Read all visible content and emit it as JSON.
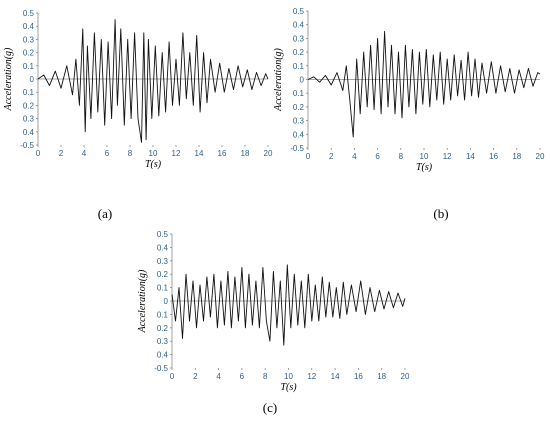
{
  "figure": {
    "captions": [
      "(a)",
      "(b)",
      "(c)"
    ]
  },
  "chart_data": [
    {
      "type": "line",
      "panel": "a",
      "xlabel": "T(s)",
      "ylabel": "Acceleration(g)",
      "xlim": [
        0,
        20
      ],
      "ylim": [
        -0.5,
        0.5
      ],
      "xticks": [
        "0",
        "2",
        "4",
        "6",
        "8",
        "10",
        "12",
        "14",
        "16",
        "18",
        "20"
      ],
      "yticks": [
        "0.5",
        "0.4",
        "0.3",
        "0.2",
        "0.1",
        "0",
        "0.1",
        "0.2",
        "0.3",
        "0.4",
        "-0.5"
      ],
      "grid": false,
      "series": [
        {
          "x": [
            0,
            0.5,
            1,
            1.5,
            2,
            2.5,
            3,
            3.3,
            3.6,
            3.9,
            4.1,
            4.3,
            4.6,
            4.9,
            5.2,
            5.5,
            5.8,
            6.1,
            6.4,
            6.7,
            6.9,
            7.2,
            7.5,
            7.8,
            8.1,
            8.4,
            8.7,
            9,
            9.2,
            9.4,
            9.6,
            9.9,
            10.2,
            10.5,
            10.8,
            11.1,
            11.4,
            11.7,
            12,
            12.3,
            12.6,
            12.9,
            13.2,
            13.5,
            13.8,
            14.1,
            14.4,
            14.7,
            15,
            15.4,
            15.8,
            16.2,
            16.6,
            17,
            17.4,
            17.8,
            18.2,
            18.6,
            19,
            19.4,
            19.8,
            20
          ],
          "y": [
            0,
            0.03,
            -0.05,
            0.06,
            -0.07,
            0.1,
            -0.12,
            0.15,
            -0.2,
            0.38,
            -0.4,
            0.25,
            -0.3,
            0.35,
            -0.25,
            0.3,
            -0.35,
            0.28,
            -0.3,
            0.45,
            -0.2,
            0.38,
            -0.35,
            0.3,
            -0.3,
            0.35,
            -0.3,
            -0.48,
            0.35,
            -0.46,
            0.3,
            -0.3,
            0.25,
            -0.28,
            0.2,
            -0.25,
            0.28,
            -0.2,
            0.15,
            -0.2,
            0.35,
            -0.15,
            0.2,
            -0.2,
            0.33,
            -0.25,
            0.2,
            -0.18,
            0.15,
            -0.1,
            0.12,
            -0.1,
            0.08,
            -0.08,
            0.1,
            -0.06,
            0.07,
            -0.08,
            0.05,
            -0.05,
            0.04,
            0
          ]
        }
      ]
    },
    {
      "type": "line",
      "panel": "b",
      "xlabel": "T(s)",
      "ylabel": "Acceleration(g)",
      "xlim": [
        0,
        20
      ],
      "ylim": [
        -0.5,
        0.5
      ],
      "xticks": [
        "0",
        "2",
        "4",
        "6",
        "8",
        "10",
        "12",
        "14",
        "16",
        "18",
        "20"
      ],
      "yticks": [
        "0.5",
        "0.4",
        "0.3",
        "0.2",
        "0.1",
        "0",
        "0.1",
        "0.2",
        "0.3",
        "0.4",
        "-0.5"
      ],
      "grid": false,
      "series": [
        {
          "x": [
            0,
            0.5,
            1,
            1.5,
            2,
            2.5,
            3,
            3.3,
            3.6,
            3.9,
            4.2,
            4.5,
            4.8,
            5.1,
            5.4,
            5.7,
            6,
            6.3,
            6.6,
            6.9,
            7.2,
            7.5,
            7.8,
            8.1,
            8.4,
            8.7,
            9,
            9.3,
            9.6,
            9.9,
            10.2,
            10.5,
            10.8,
            11.1,
            11.4,
            11.7,
            12,
            12.3,
            12.6,
            12.9,
            13.2,
            13.5,
            13.8,
            14.1,
            14.4,
            14.7,
            15,
            15.4,
            15.8,
            16.2,
            16.6,
            17,
            17.4,
            17.8,
            18.2,
            18.6,
            19,
            19.4,
            19.8,
            20
          ],
          "y": [
            0,
            0.02,
            -0.02,
            0.03,
            -0.04,
            0.05,
            -0.08,
            0.1,
            -0.15,
            -0.42,
            0.15,
            -0.25,
            0.2,
            -0.2,
            0.25,
            -0.22,
            0.3,
            -0.25,
            0.35,
            -0.2,
            0.25,
            -0.25,
            0.2,
            -0.28,
            0.25,
            -0.2,
            0.22,
            -0.25,
            0.2,
            -0.18,
            0.22,
            -0.2,
            0.18,
            -0.15,
            0.2,
            -0.18,
            0.15,
            -0.15,
            0.18,
            -0.12,
            0.14,
            -0.15,
            0.2,
            -0.12,
            0.15,
            -0.13,
            0.12,
            -0.1,
            0.13,
            -0.1,
            0.1,
            -0.09,
            0.08,
            -0.1,
            0.07,
            -0.06,
            0.08,
            -0.05,
            0.05,
            0.04
          ]
        }
      ]
    },
    {
      "type": "line",
      "panel": "c",
      "xlabel": "T(s)",
      "ylabel": "Acceleration(g)",
      "xlim": [
        0,
        20
      ],
      "ylim": [
        -0.5,
        0.5
      ],
      "xticks": [
        "0",
        "2",
        "4",
        "6",
        "8",
        "10",
        "12",
        "14",
        "16",
        "18",
        "20"
      ],
      "yticks": [
        "0.5",
        "0.4",
        "0.3",
        "0.2",
        "0.1",
        "0",
        "0.1",
        "0.2",
        "0.3",
        "0.4",
        "-0.5"
      ],
      "grid": false,
      "series": [
        {
          "x": [
            0,
            0.3,
            0.6,
            0.9,
            1.2,
            1.5,
            1.8,
            2.1,
            2.4,
            2.7,
            3,
            3.3,
            3.6,
            3.9,
            4.2,
            4.5,
            4.8,
            5.1,
            5.4,
            5.7,
            6,
            6.3,
            6.6,
            6.9,
            7.2,
            7.5,
            7.8,
            8.1,
            8.4,
            8.7,
            9,
            9.3,
            9.6,
            9.9,
            10.2,
            10.5,
            10.8,
            11.1,
            11.4,
            11.7,
            12,
            12.3,
            12.6,
            12.9,
            13.2,
            13.5,
            13.8,
            14.1,
            14.4,
            14.7,
            15,
            15.4,
            15.8,
            16.2,
            16.6,
            17,
            17.4,
            17.8,
            18.2,
            18.6,
            19,
            19.4,
            19.8,
            20
          ],
          "y": [
            0.05,
            -0.15,
            0.1,
            -0.28,
            0.2,
            -0.15,
            0.15,
            -0.2,
            0.12,
            -0.15,
            0.18,
            -0.12,
            0.2,
            -0.2,
            0.15,
            -0.18,
            0.22,
            -0.2,
            0.18,
            -0.15,
            0.25,
            -0.2,
            0.2,
            -0.18,
            0.15,
            -0.2,
            0.25,
            -0.15,
            -0.3,
            0.22,
            -0.2,
            0.15,
            -0.33,
            0.27,
            -0.2,
            0.2,
            -0.18,
            0.15,
            -0.2,
            0.2,
            -0.15,
            0.12,
            -0.15,
            0.18,
            -0.12,
            0.14,
            -0.12,
            0.1,
            -0.13,
            0.14,
            -0.1,
            0.12,
            -0.08,
            0.15,
            -0.1,
            0.1,
            -0.08,
            0.08,
            -0.06,
            0.07,
            -0.05,
            0.06,
            -0.04,
            0.02
          ]
        }
      ]
    }
  ]
}
